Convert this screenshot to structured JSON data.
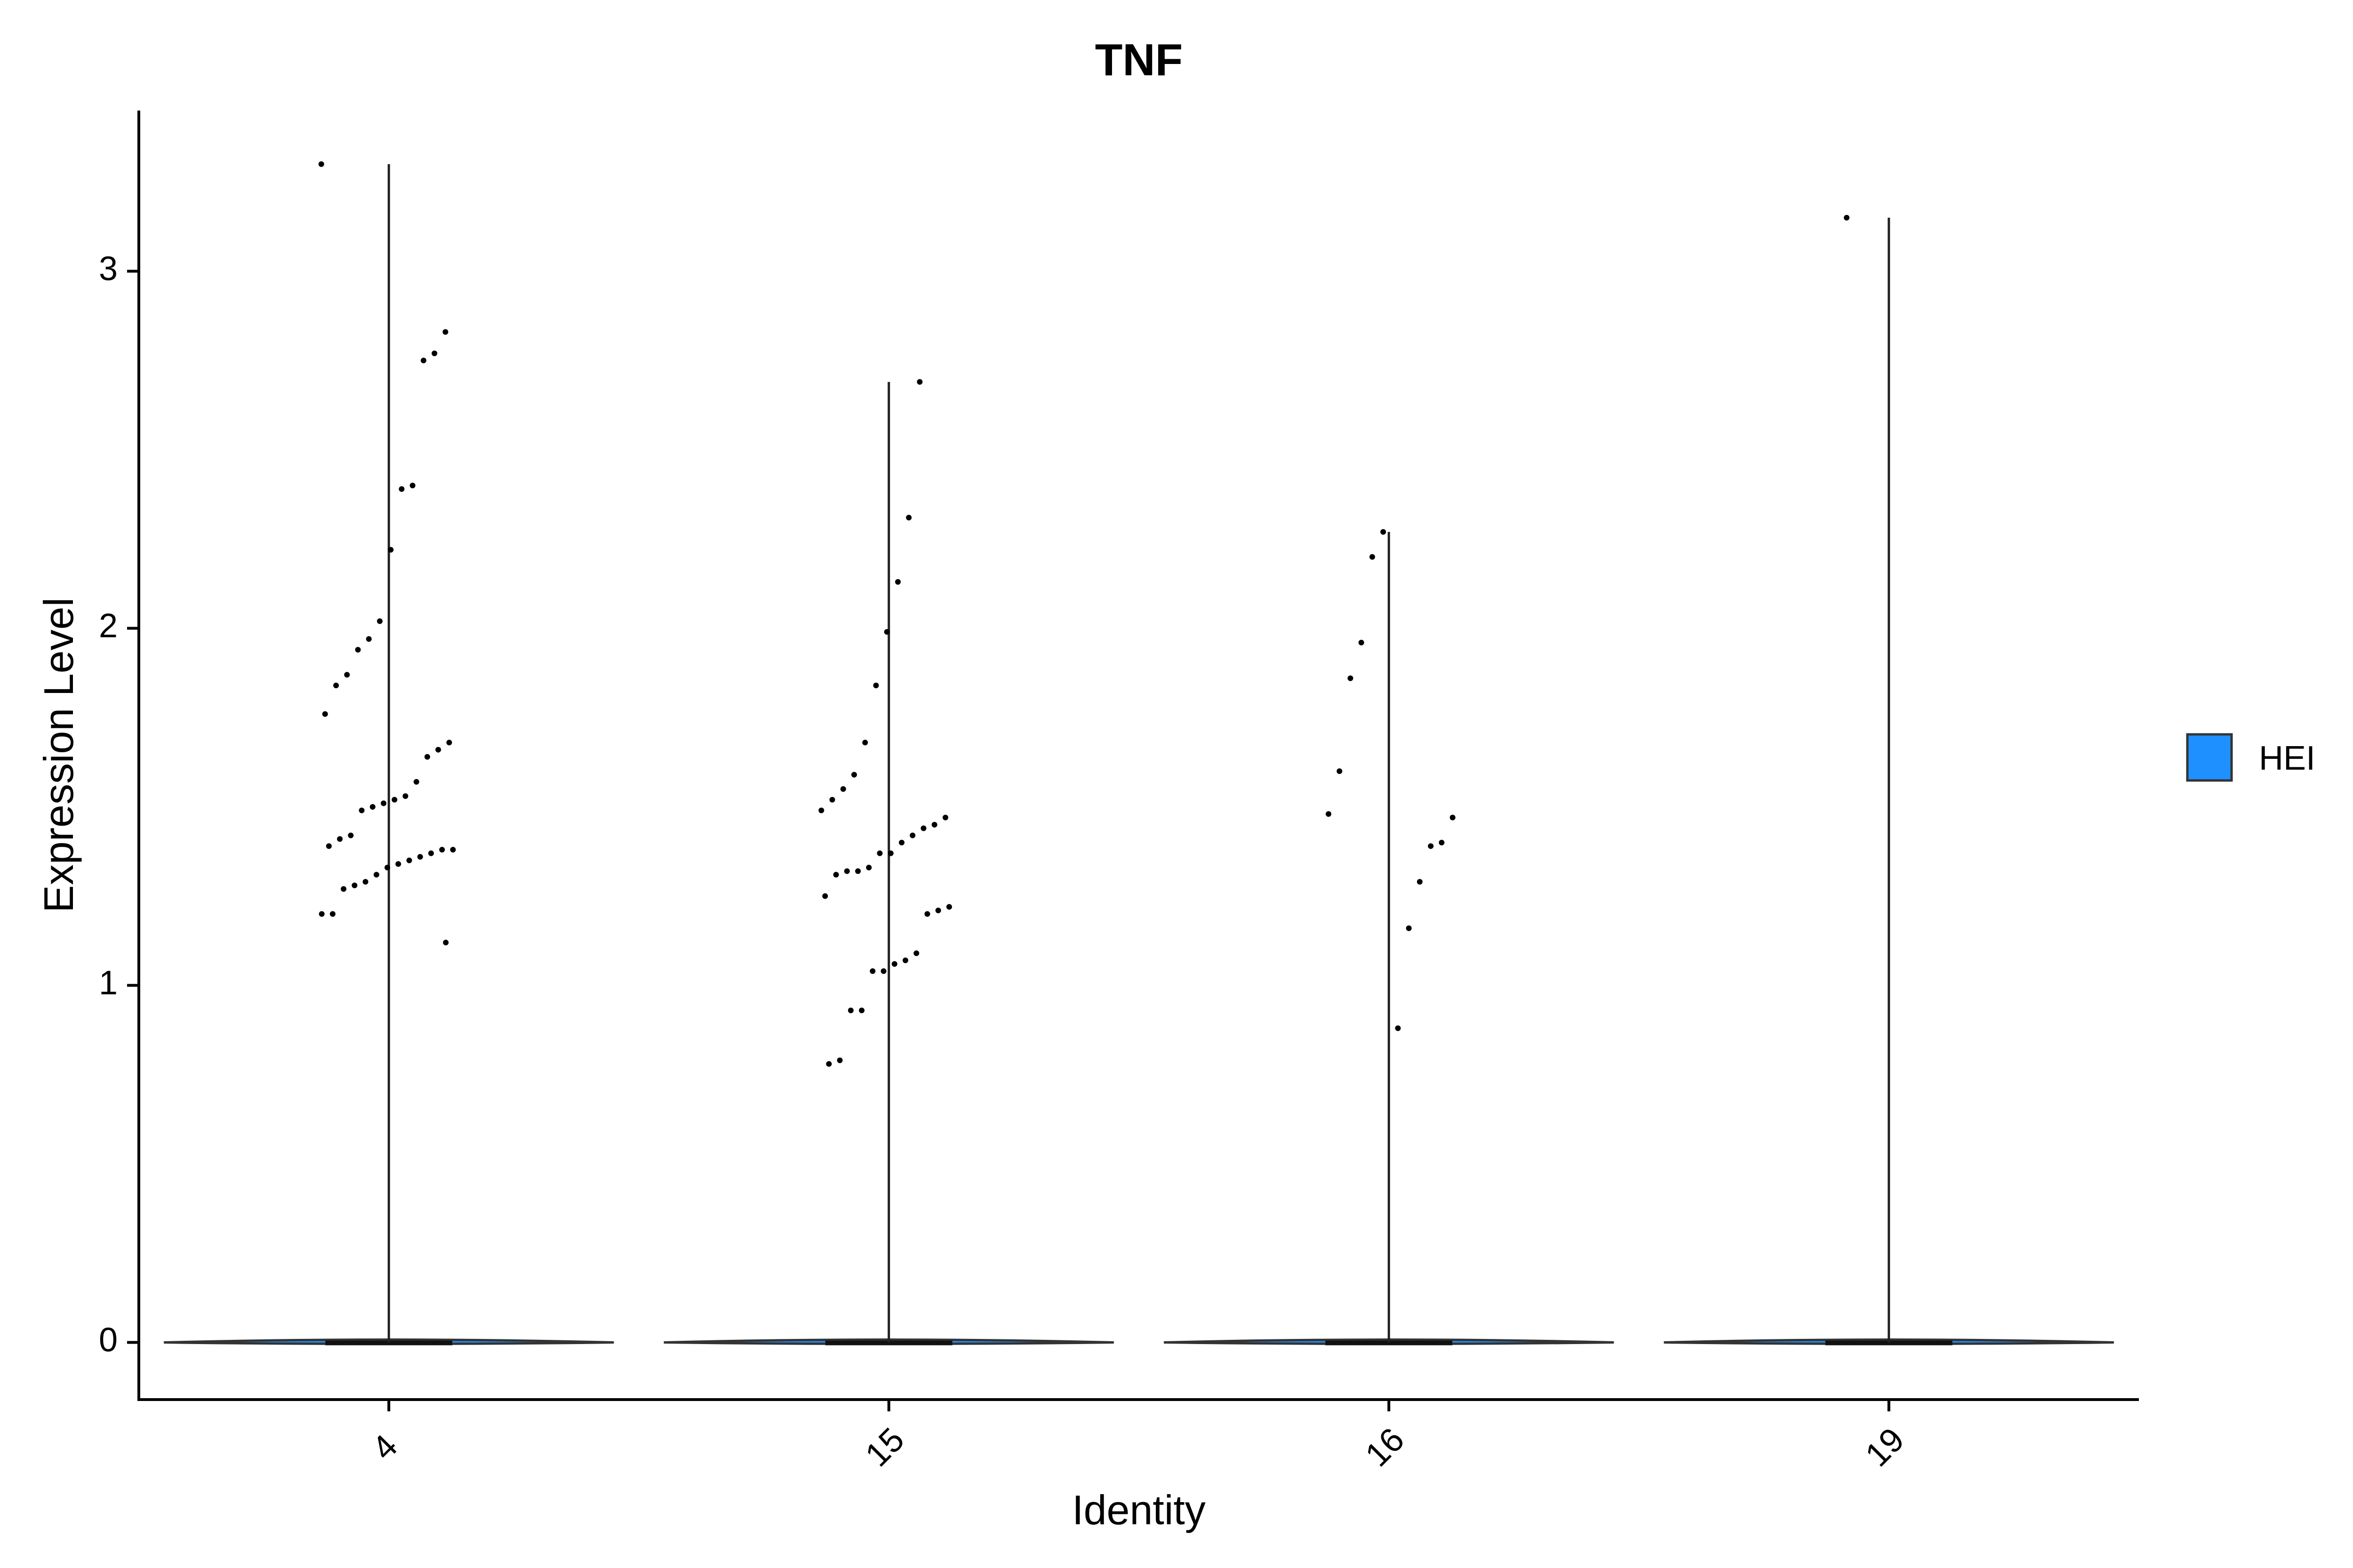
{
  "chart_data": {
    "type": "violin",
    "title": "TNF",
    "xlabel": "Identity",
    "ylabel": "Expression Level",
    "categories": [
      "4",
      "15",
      "16",
      "19"
    ],
    "ylim": [
      -0.16,
      3.45
    ],
    "yticks": [
      0,
      1,
      2,
      3
    ],
    "grid": false,
    "legend": {
      "position": "right",
      "entries": [
        {
          "label": "HEI",
          "color": "#1E90FF"
        }
      ]
    },
    "series": [
      {
        "name": "HEI",
        "color": "#1E90FF",
        "violin_max": [
          3.3,
          2.69,
          2.27,
          3.15
        ],
        "points": [
          {
            "category": "4",
            "values": [
              3.3,
              2.83,
              2.77,
              2.75,
              2.4,
              2.39,
              2.22,
              2.02,
              1.97,
              1.94,
              1.87,
              1.84,
              1.76,
              1.68,
              1.66,
              1.64,
              1.57,
              1.53,
              1.52,
              1.51,
              1.5,
              1.49,
              1.42,
              1.41,
              1.39,
              1.38,
              1.38,
              1.37,
              1.36,
              1.35,
              1.34,
              1.33,
              1.31,
              1.29,
              1.28,
              1.27,
              1.2,
              1.2,
              1.12
            ]
          },
          {
            "category": "15",
            "values": [
              2.69,
              2.31,
              2.13,
              1.99,
              1.84,
              1.68,
              1.59,
              1.55,
              1.52,
              1.49,
              1.47,
              1.45,
              1.44,
              1.42,
              1.4,
              1.37,
              1.37,
              1.33,
              1.32,
              1.32,
              1.31,
              1.25,
              1.22,
              1.21,
              1.2,
              1.09,
              1.07,
              1.06,
              1.04,
              1.04,
              0.93,
              0.93,
              0.79,
              0.78
            ]
          },
          {
            "category": "16",
            "values": [
              2.27,
              2.2,
              1.96,
              1.86,
              1.6,
              1.48,
              1.47,
              1.4,
              1.39,
              1.29,
              1.16,
              0.88
            ]
          },
          {
            "category": "19",
            "values": [
              3.15
            ]
          }
        ]
      }
    ]
  }
}
